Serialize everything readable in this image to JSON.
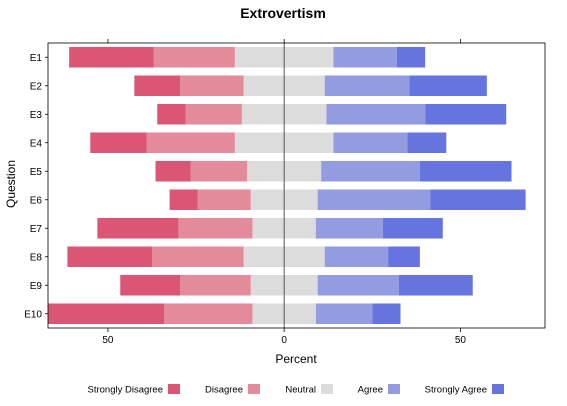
{
  "chart_data": {
    "type": "bar",
    "orientation": "horizontal-diverging",
    "title": "Extrovertism",
    "xlabel": "Percent",
    "ylabel": "Question",
    "xlim": [
      -67,
      74
    ],
    "xticks": [
      -50,
      0,
      50
    ],
    "xtick_labels": [
      "50",
      "0",
      "50"
    ],
    "grid": false,
    "legend_position": "bottom",
    "categories": [
      "E1",
      "E2",
      "E3",
      "E4",
      "E5",
      "E6",
      "E7",
      "E8",
      "E9",
      "E10"
    ],
    "series": [
      {
        "name": "Strongly Disagree",
        "color": "#DB5574",
        "values": [
          24,
          13,
          8,
          16,
          10,
          8,
          23,
          24,
          17,
          33
        ]
      },
      {
        "name": "Disagree",
        "color": "#E38A9B",
        "values": [
          23,
          18,
          16,
          25,
          16,
          15,
          21,
          26,
          20,
          25
        ]
      },
      {
        "name": "Neutral",
        "color": "#DCDCDC",
        "values": [
          28,
          23,
          24,
          28,
          21,
          19,
          18,
          23,
          19,
          18
        ]
      },
      {
        "name": "Agree",
        "color": "#939CE0",
        "values": [
          18,
          24,
          28,
          21,
          28,
          32,
          19,
          18,
          23,
          16
        ]
      },
      {
        "name": "Strongly Agree",
        "color": "#6674E0",
        "values": [
          8,
          22,
          23,
          11,
          26,
          27,
          17,
          9,
          21,
          8
        ]
      }
    ]
  }
}
